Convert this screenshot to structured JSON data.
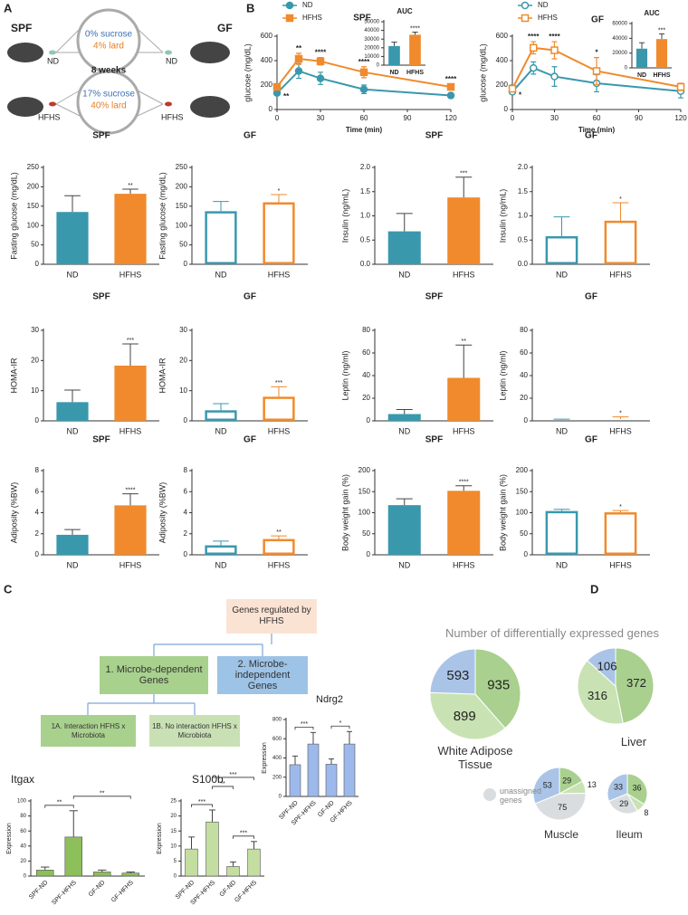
{
  "panel_labels": [
    "A",
    "B",
    "C",
    "D"
  ],
  "diagram": {
    "left_group": "SPF",
    "right_group": "GF",
    "duration": "8 weeks",
    "nd": {
      "label": "ND",
      "sucrose": "0% sucrose",
      "lard": "4% lard"
    },
    "hfhs": {
      "label": "HFHS",
      "sucrose": "17% sucrose",
      "lard": "40% lard"
    }
  },
  "tree": {
    "root": "Genes regulated by HFHS",
    "dependent": "1. Microbe-dependent Genes",
    "independent": "2. Microbe-independent Genes",
    "interaction": "1A. Interaction HFHS x Microbiota",
    "no_interaction": "1B. No interaction HFHS x Microbiota"
  },
  "pie_panel": {
    "title": "Number of differentially expressed genes",
    "legend": "unassigned genes"
  },
  "chart_data": [
    {
      "type": "line",
      "title": "SPF",
      "xlabel": "Time (min)",
      "ylabel": "glucose (mg/dL)",
      "hollow": false,
      "x": [
        0,
        15,
        30,
        60,
        120
      ],
      "xlim": [
        0,
        120
      ],
      "xticks": [
        0,
        30,
        60,
        90,
        120
      ],
      "ylim": [
        0,
        600
      ],
      "yticks": [
        0,
        200,
        400,
        600
      ],
      "series": [
        {
          "name": "ND",
          "color": "#3a98ad",
          "marker": "circle",
          "values": [
            135,
            315,
            255,
            165,
            115
          ],
          "errors": [
            15,
            60,
            50,
            35,
            20
          ],
          "stars": [
            "**",
            null,
            null,
            null,
            null
          ]
        },
        {
          "name": "HFHS",
          "color": "#f08a2c",
          "marker": "square",
          "values": [
            185,
            415,
            395,
            305,
            185
          ],
          "errors": [
            20,
            45,
            30,
            45,
            25
          ],
          "stars": [
            null,
            "**",
            "****",
            "****",
            "****"
          ]
        }
      ]
    },
    {
      "type": "bar",
      "title": "AUC",
      "categories": [
        "ND",
        "HFHS"
      ],
      "values": [
        22000,
        35000
      ],
      "errors": [
        4500,
        3000
      ],
      "colors": [
        "#3a98ad",
        "#f08a2c"
      ],
      "hollow": false,
      "ylim": [
        0,
        50000
      ],
      "yticks": [
        0,
        10000,
        20000,
        30000,
        40000,
        50000
      ],
      "stars": [
        null,
        "****"
      ]
    },
    {
      "type": "line",
      "title": "GF",
      "xlabel": "Time (min)",
      "ylabel": "glucose (mg/dL)",
      "hollow": true,
      "x": [
        0,
        15,
        30,
        60,
        120
      ],
      "xlim": [
        0,
        120
      ],
      "xticks": [
        0,
        30,
        60,
        90,
        120
      ],
      "ylim": [
        0,
        600
      ],
      "yticks": [
        0,
        200,
        400,
        600
      ],
      "series": [
        {
          "name": "ND",
          "color": "#3a98ad",
          "marker": "circle",
          "values": [
            145,
            340,
            270,
            215,
            150
          ],
          "errors": [
            15,
            50,
            80,
            70,
            55
          ],
          "stars": [
            "*",
            null,
            null,
            null,
            null
          ]
        },
        {
          "name": "HFHS",
          "color": "#f08a2c",
          "marker": "square",
          "values": [
            170,
            505,
            485,
            315,
            185
          ],
          "errors": [
            20,
            50,
            70,
            110,
            30
          ],
          "stars": [
            null,
            "****",
            "****",
            "*",
            null
          ]
        }
      ]
    },
    {
      "type": "bar",
      "title": "AUC",
      "categories": [
        "ND",
        "HFHS"
      ],
      "values": [
        26000,
        39000
      ],
      "errors": [
        8000,
        7000
      ],
      "colors": [
        "#3a98ad",
        "#f08a2c"
      ],
      "hollow": false,
      "ylim": [
        0,
        60000
      ],
      "yticks": [
        0,
        20000,
        40000,
        60000
      ],
      "stars": [
        null,
        "***"
      ]
    },
    {
      "type": "bar",
      "title": "SPF",
      "ylabel": "Fasting glucose (mg/dL)",
      "categories": [
        "ND",
        "HFHS"
      ],
      "values": [
        135,
        182
      ],
      "errors": [
        42,
        12
      ],
      "colors": [
        "#3a98ad",
        "#f08a2c"
      ],
      "hollow": false,
      "ylim": [
        0,
        250
      ],
      "yticks": [
        0,
        50,
        100,
        150,
        200,
        250
      ],
      "stars": [
        null,
        "**"
      ]
    },
    {
      "type": "bar",
      "title": "GF",
      "ylabel": "Fasting glucose (mg/dL)",
      "categories": [
        "ND",
        "HFHS"
      ],
      "values": [
        137,
        160
      ],
      "errors": [
        25,
        20
      ],
      "colors": [
        "#3a98ad",
        "#f08a2c"
      ],
      "hollow": true,
      "ylim": [
        0,
        250
      ],
      "yticks": [
        0,
        50,
        100,
        150,
        200,
        250
      ],
      "stars": [
        null,
        "*"
      ]
    },
    {
      "type": "bar",
      "title": "SPF",
      "ylabel": "Insulin (ng/mL)",
      "categories": [
        "ND",
        "HFHS"
      ],
      "values": [
        0.68,
        1.38
      ],
      "errors": [
        0.37,
        0.42
      ],
      "colors": [
        "#3a98ad",
        "#f08a2c"
      ],
      "hollow": false,
      "ylim": [
        0,
        2
      ],
      "yticks": [
        {
          "value": 0,
          "label": "0.0"
        },
        0.5,
        {
          "value": 1,
          "label": "1.0"
        },
        1.5,
        {
          "value": 2,
          "label": "2.0"
        }
      ],
      "stars": [
        null,
        "***"
      ]
    },
    {
      "type": "bar",
      "title": "GF",
      "ylabel": "Insulin (ng/mL)",
      "categories": [
        "ND",
        "HFHS"
      ],
      "values": [
        0.58,
        0.9
      ],
      "errors": [
        0.4,
        0.37
      ],
      "colors": [
        "#3a98ad",
        "#f08a2c"
      ],
      "hollow": true,
      "ylim": [
        0,
        2
      ],
      "yticks": [
        {
          "value": 0,
          "label": "0.0"
        },
        0.5,
        {
          "value": 1,
          "label": "1.0"
        },
        1.5,
        {
          "value": 2,
          "label": "2.0"
        }
      ],
      "stars": [
        null,
        "*"
      ]
    },
    {
      "type": "bar",
      "title": "SPF",
      "ylabel": "HOMA-IR",
      "categories": [
        "ND",
        "HFHS"
      ],
      "values": [
        6.2,
        18.3
      ],
      "errors": [
        4,
        7.2
      ],
      "colors": [
        "#3a98ad",
        "#f08a2c"
      ],
      "hollow": false,
      "ylim": [
        0,
        30
      ],
      "yticks": [
        0,
        10,
        20,
        30
      ],
      "stars": [
        null,
        "***"
      ]
    },
    {
      "type": "bar",
      "title": "GF",
      "ylabel": "HOMA-IR",
      "categories": [
        "ND",
        "HFHS"
      ],
      "values": [
        3.5,
        8
      ],
      "errors": [
        2.2,
        3.3
      ],
      "colors": [
        "#3a98ad",
        "#f08a2c"
      ],
      "hollow": true,
      "ylim": [
        0,
        30
      ],
      "yticks": [
        0,
        10,
        20,
        30
      ],
      "stars": [
        null,
        "***"
      ]
    },
    {
      "type": "bar",
      "title": "SPF",
      "ylabel": "Leptin (ng/ml)",
      "categories": [
        "ND",
        "HFHS"
      ],
      "values": [
        6,
        38
      ],
      "errors": [
        4,
        29
      ],
      "colors": [
        "#3a98ad",
        "#f08a2c"
      ],
      "hollow": false,
      "ylim": [
        0,
        80
      ],
      "yticks": [
        0,
        20,
        40,
        60,
        80
      ],
      "stars": [
        null,
        "**"
      ]
    },
    {
      "type": "bar",
      "title": "GF",
      "ylabel": "Leptin (ng/ml)",
      "categories": [
        "ND",
        "HFHS"
      ],
      "values": [
        1,
        1.5
      ],
      "errors": [
        0.5,
        2
      ],
      "colors": [
        "#3a98ad",
        "#f08a2c"
      ],
      "hollow": true,
      "ylim": [
        0,
        80
      ],
      "yticks": [
        0,
        20,
        40,
        60,
        80
      ],
      "stars": [
        null,
        "*"
      ]
    },
    {
      "type": "bar",
      "title": "SPF",
      "ylabel": "Adiposity (%BW)",
      "categories": [
        "ND",
        "HFHS"
      ],
      "values": [
        1.9,
        4.7
      ],
      "errors": [
        0.5,
        1.1
      ],
      "colors": [
        "#3a98ad",
        "#f08a2c"
      ],
      "hollow": false,
      "ylim": [
        0,
        8
      ],
      "yticks": [
        0,
        2,
        4,
        6,
        8
      ],
      "stars": [
        null,
        "****"
      ]
    },
    {
      "type": "bar",
      "title": "GF",
      "ylabel": "Adiposity (%BW)",
      "categories": [
        "ND",
        "HFHS"
      ],
      "values": [
        0.9,
        1.5
      ],
      "errors": [
        0.4,
        0.3
      ],
      "colors": [
        "#3a98ad",
        "#f08a2c"
      ],
      "hollow": true,
      "ylim": [
        0,
        8
      ],
      "yticks": [
        0,
        2,
        4,
        6,
        8
      ],
      "stars": [
        null,
        "**"
      ]
    },
    {
      "type": "bar",
      "title": "SPF",
      "ylabel": "Body weight gain (%)",
      "categories": [
        "ND",
        "HFHS"
      ],
      "values": [
        118,
        152
      ],
      "errors": [
        15,
        12
      ],
      "colors": [
        "#3a98ad",
        "#f08a2c"
      ],
      "hollow": false,
      "ylim": [
        0,
        200
      ],
      "yticks": [
        0,
        50,
        100,
        150,
        200
      ],
      "stars": [
        null,
        "****"
      ]
    },
    {
      "type": "bar",
      "title": "GF",
      "ylabel": "Body weight gain (%)",
      "categories": [
        "ND",
        "HFHS"
      ],
      "values": [
        104,
        101
      ],
      "errors": [
        4,
        4
      ],
      "colors": [
        "#3a98ad",
        "#f08a2c"
      ],
      "hollow": true,
      "ylim": [
        0,
        200
      ],
      "yticks": [
        0,
        50,
        100,
        150,
        200
      ],
      "stars": [
        null,
        "*"
      ]
    },
    {
      "type": "bar",
      "title": "Ndrg2",
      "ylabel": "Expression",
      "categories": [
        "SPF-ND",
        "SPF-HFHS",
        "GF-ND",
        "GF-HFHS"
      ],
      "values": [
        330,
        545,
        335,
        545
      ],
      "errors": [
        90,
        120,
        55,
        130
      ],
      "colors": [
        "#9db9ec",
        "#9db9ec",
        "#9db9ec",
        "#9db9ec"
      ],
      "hollow": false,
      "ylim": [
        0,
        800
      ],
      "yticks": [
        0,
        200,
        400,
        600,
        800
      ],
      "comparisons": [
        {
          "pair": [
            0,
            1
          ],
          "text": "***"
        },
        {
          "pair": [
            2,
            3
          ],
          "text": "*"
        }
      ]
    },
    {
      "type": "bar",
      "title": "Itgax",
      "ylabel": "Expression",
      "categories": [
        "SPF-ND",
        "SPF-HFHS",
        "GF-ND",
        "GF-HFHS"
      ],
      "values": [
        8,
        52,
        5.5,
        4
      ],
      "errors": [
        4,
        35,
        2.5,
        1.5
      ],
      "colors": [
        "#8dbf5a",
        "#8dbf5a",
        "#8dbf5a",
        "#8dbf5a"
      ],
      "hollow": false,
      "ylim": [
        0,
        100
      ],
      "yticks": [
        0,
        20,
        40,
        60,
        80,
        100
      ],
      "comparisons": [
        {
          "pair": [
            0,
            1
          ],
          "text": "**"
        },
        {
          "pair": [
            1,
            3
          ],
          "text": "**"
        }
      ]
    },
    {
      "type": "bar",
      "title": "S100b",
      "ylabel": "Expression",
      "categories": [
        "SPF-ND",
        "SPF-HFHS",
        "GF-ND",
        "GF-HFHS"
      ],
      "values": [
        9,
        18,
        3.2,
        9
      ],
      "errors": [
        4,
        4,
        1.5,
        2.5
      ],
      "colors": [
        "#c3dea0",
        "#c3dea0",
        "#c3dea0",
        "#c3dea0"
      ],
      "hollow": false,
      "ylim": [
        0,
        25
      ],
      "yticks": [
        0,
        5,
        10,
        15,
        20,
        25
      ],
      "comparisons": [
        {
          "pair": [
            0,
            1
          ],
          "text": "***"
        },
        {
          "pair": [
            2,
            3
          ],
          "text": "***"
        },
        {
          "pair": [
            1,
            2
          ],
          "text": "**"
        },
        {
          "pair": [
            1,
            3
          ],
          "text": "***"
        }
      ]
    },
    {
      "type": "pie",
      "title": "White Adipose Tissue",
      "values": [
        935,
        899,
        593
      ],
      "colors": [
        "#a9d08e",
        "#c9e2b3",
        "#a9c4e6"
      ]
    },
    {
      "type": "pie",
      "title": "Liver",
      "values": [
        372,
        316,
        106
      ],
      "colors": [
        "#a9d08e",
        "#c9e2b3",
        "#a9c4e6"
      ]
    },
    {
      "type": "pie",
      "title": "Muscle",
      "values": [
        29,
        13,
        75,
        53
      ],
      "colors": [
        "#a9d08e",
        "#c9e2b3",
        "#d9dde0",
        "#a9c4e6"
      ]
    },
    {
      "type": "pie",
      "title": "Ileum",
      "values": [
        36,
        8,
        29,
        33
      ],
      "colors": [
        "#a9d08e",
        "#c9e2b3",
        "#d9dde0",
        "#a9c4e6"
      ]
    }
  ]
}
